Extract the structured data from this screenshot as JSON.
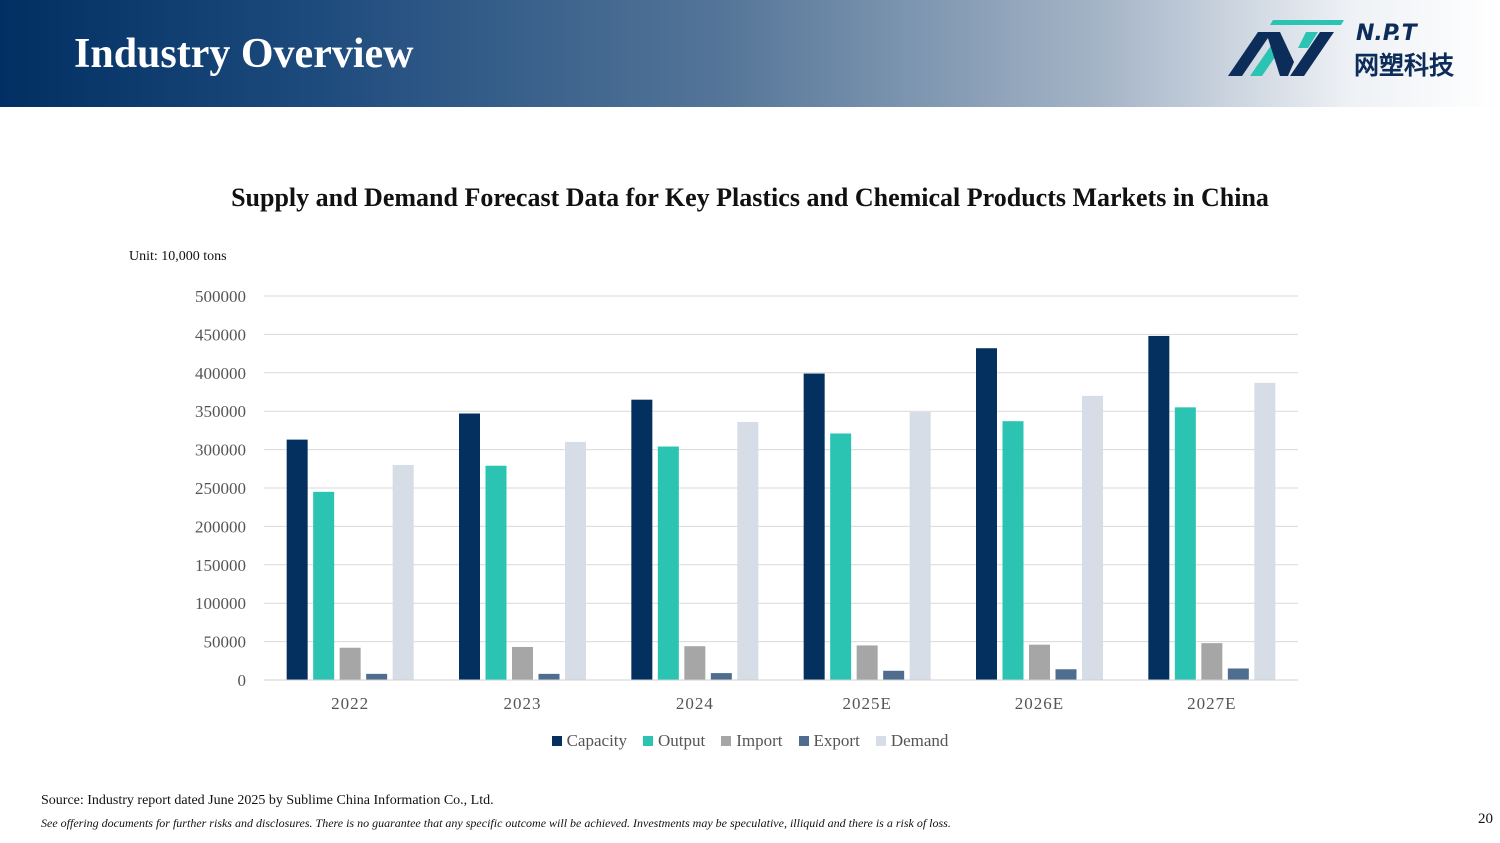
{
  "header": {
    "title": "Industry Overview"
  },
  "logo": {
    "text": "N.P.T",
    "chinese_text": "网塑科技",
    "icon": "npt-logo-icon",
    "colors": {
      "navy": "#0c2c5a",
      "teal": "#2bc4b3"
    }
  },
  "chart_data": {
    "type": "bar",
    "title": "Supply and Demand Forecast Data for Key Plastics and Chemical Products Markets in China",
    "unit_label": "Unit: 10,000 tons",
    "categories": [
      "2022",
      "2023",
      "2024",
      "2025E",
      "2026E",
      "2027E"
    ],
    "series": [
      {
        "name": "Capacity",
        "color": "#04305f",
        "values": [
          313000,
          347000,
          365000,
          399000,
          432000,
          448000
        ]
      },
      {
        "name": "Output",
        "color": "#2bc4b3",
        "values": [
          245000,
          279000,
          304000,
          321000,
          337000,
          355000
        ]
      },
      {
        "name": "Import",
        "color": "#a6a6a6",
        "values": [
          42000,
          43000,
          44000,
          45000,
          46000,
          48000
        ]
      },
      {
        "name": "Export",
        "color": "#4f6e8f",
        "values": [
          8000,
          8000,
          9000,
          12000,
          14000,
          15000
        ]
      },
      {
        "name": "Demand",
        "color": "#d6dde6",
        "values": [
          280000,
          310000,
          336000,
          349000,
          370000,
          387000
        ]
      }
    ],
    "ylim": [
      0,
      500000
    ],
    "yticks": [
      0,
      50000,
      100000,
      150000,
      200000,
      250000,
      300000,
      350000,
      400000,
      450000,
      500000
    ],
    "grid": true,
    "legend_position": "bottom"
  },
  "footer": {
    "source": "Source: Industry report dated June 2025 by Sublime China Information Co., Ltd.",
    "disclaimer": "See offering documents for further risks and disclosures. There is no guarantee that any specific outcome will be achieved. Investments may be speculative, illiquid and there is a risk of loss.",
    "page_number": "20"
  }
}
